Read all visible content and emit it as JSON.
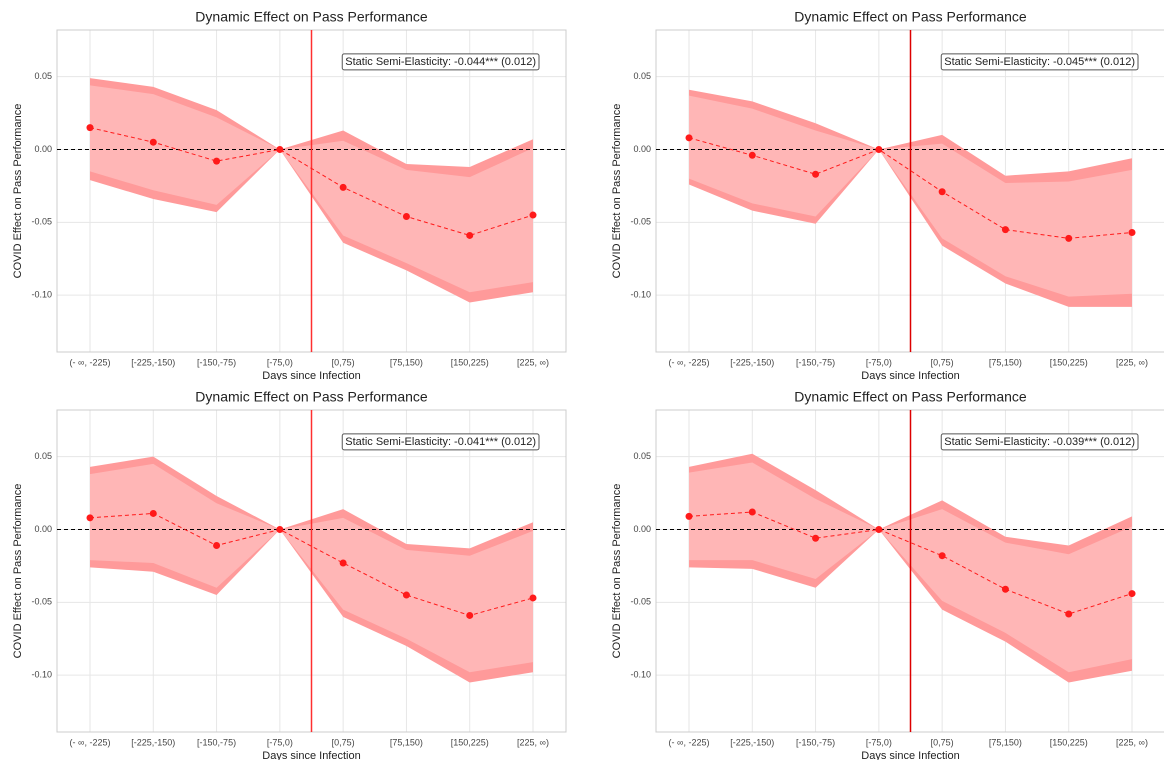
{
  "chart_data": [
    {
      "type": "line",
      "title": "Dynamic Effect on Pass Performance",
      "xlabel": "Days since Infection",
      "ylabel": "COVID Effect on Pass Performance",
      "annotation": "Static Semi-Elasticity: -0.044*** (0.012)",
      "categories": [
        "(- ∞, -225)",
        "[-225,-150)",
        "[-150,-75)",
        "[-75,0)",
        "[0,75)",
        "[75,150)",
        "[150,225)",
        "[225, ∞)"
      ],
      "series": [
        {
          "color": "#ff1a1a",
          "values": [
            0.015,
            0.005,
            -0.008,
            0,
            -0.026,
            -0.046,
            -0.059,
            -0.045
          ],
          "upper_95": [
            0.049,
            0.043,
            0.027,
            0,
            0.013,
            -0.01,
            -0.012,
            0.007
          ],
          "lower_95": [
            -0.021,
            -0.034,
            -0.043,
            0,
            -0.064,
            -0.083,
            -0.105,
            -0.098
          ],
          "upper_90": [
            0.044,
            0.038,
            0.022,
            0,
            0.006,
            -0.014,
            -0.019,
            0.001
          ],
          "lower_90": [
            -0.015,
            -0.028,
            -0.038,
            0,
            -0.059,
            -0.078,
            -0.098,
            -0.091
          ]
        }
      ],
      "band_colors": [
        "#ff9a9a",
        "#ffb6b6"
      ],
      "vline_color": "#ff3030",
      "ylim": [
        -0.139,
        0.082
      ],
      "yticks": [
        0.05,
        {
          "value": 0,
          "label": "0.00"
        },
        -0.05,
        {
          "value": -0.1,
          "label": "-0.10"
        }
      ],
      "grid": true
    },
    {
      "type": "line",
      "title": "Dynamic Effect on Pass Performance",
      "xlabel": "Days since Infection",
      "ylabel": "COVID Effect on Pass Performance",
      "annotation": "Static Semi-Elasticity: -0.045*** (0.012)",
      "categories": [
        "(- ∞, -225)",
        "[-225,-150)",
        "[-150,-75)",
        "[-75,0)",
        "[0,75)",
        "[75,150)",
        "[150,225)",
        "[225, ∞)"
      ],
      "series": [
        {
          "color": "#ff1a1a",
          "values": [
            0.008,
            -0.004,
            -0.017,
            0,
            -0.029,
            -0.055,
            -0.061,
            -0.057
          ],
          "upper_95": [
            0.041,
            0.033,
            0.018,
            0,
            0.01,
            -0.018,
            -0.015,
            -0.006
          ],
          "lower_95": [
            -0.024,
            -0.042,
            -0.051,
            0,
            -0.066,
            -0.092,
            -0.108,
            -0.108
          ],
          "upper_90": [
            0.037,
            0.028,
            0.013,
            0,
            0.004,
            -0.023,
            -0.022,
            -0.014
          ],
          "lower_90": [
            -0.02,
            -0.037,
            -0.046,
            0,
            -0.061,
            -0.087,
            -0.101,
            -0.099
          ]
        }
      ],
      "band_colors": [
        "#ff9a9a",
        "#ffb6b6"
      ],
      "vline_color": "#dd0000",
      "ylim": [
        -0.139,
        0.082
      ],
      "yticks": [
        0.05,
        {
          "value": 0,
          "label": "0.00"
        },
        -0.05,
        {
          "value": -0.1,
          "label": "-0.10"
        }
      ],
      "grid": true
    },
    {
      "type": "line",
      "title": "Dynamic Effect on Pass Performance",
      "xlabel": "Days since Infection",
      "ylabel": "COVID Effect on Pass Performance",
      "annotation": "Static Semi-Elasticity: -0.041*** (0.012)",
      "categories": [
        "(- ∞, -225)",
        "[-225,-150)",
        "[-150,-75)",
        "[-75,0)",
        "[0,75)",
        "[75,150)",
        "[150,225)",
        "[225, ∞)"
      ],
      "series": [
        {
          "color": "#ff1a1a",
          "values": [
            0.008,
            0.011,
            -0.011,
            0,
            -0.023,
            -0.045,
            -0.059,
            -0.047
          ],
          "upper_95": [
            0.043,
            0.05,
            0.023,
            0,
            0.014,
            -0.01,
            -0.013,
            0.005
          ],
          "lower_95": [
            -0.026,
            -0.029,
            -0.045,
            0,
            -0.06,
            -0.08,
            -0.105,
            -0.098
          ],
          "upper_90": [
            0.038,
            0.045,
            0.018,
            0,
            0.008,
            -0.014,
            -0.018,
            -0.001
          ],
          "lower_90": [
            -0.021,
            -0.023,
            -0.04,
            0,
            -0.055,
            -0.075,
            -0.098,
            -0.091
          ]
        }
      ],
      "band_colors": [
        "#ff9a9a",
        "#ffb6b6"
      ],
      "vline_color": "#ff3030",
      "ylim": [
        -0.139,
        0.082
      ],
      "yticks": [
        0.05,
        {
          "value": 0,
          "label": "0.00"
        },
        -0.05,
        {
          "value": -0.1,
          "label": "-0.10"
        }
      ],
      "grid": true
    },
    {
      "type": "line",
      "title": "Dynamic Effect on Pass Performance",
      "xlabel": "Days since Infection",
      "ylabel": "COVID Effect on Pass Performance",
      "annotation": "Static Semi-Elasticity: -0.039*** (0.012)",
      "categories": [
        "(- ∞, -225)",
        "[-225,-150)",
        "[-150,-75)",
        "[-75,0)",
        "[0,75)",
        "[75,150)",
        "[150,225)",
        "[225, ∞)"
      ],
      "series": [
        {
          "color": "#ff1a1a",
          "values": [
            0.009,
            0.012,
            -0.006,
            0,
            -0.018,
            -0.041,
            -0.058,
            -0.044
          ],
          "upper_95": [
            0.043,
            0.052,
            0.027,
            0,
            0.02,
            -0.005,
            -0.011,
            0.009
          ],
          "lower_95": [
            -0.026,
            -0.027,
            -0.04,
            0,
            -0.055,
            -0.077,
            -0.105,
            -0.097
          ],
          "upper_90": [
            0.039,
            0.046,
            0.021,
            0,
            0.014,
            -0.009,
            -0.017,
            0.002
          ],
          "lower_90": [
            -0.021,
            -0.021,
            -0.034,
            0,
            -0.049,
            -0.071,
            -0.098,
            -0.089
          ]
        }
      ],
      "band_colors": [
        "#ff9a9a",
        "#ffb6b6"
      ],
      "vline_color": "#dd0000",
      "ylim": [
        -0.139,
        0.082
      ],
      "yticks": [
        0.05,
        {
          "value": 0,
          "label": "0.00"
        },
        -0.05,
        {
          "value": -0.1,
          "label": "-0.10"
        }
      ],
      "grid": true
    }
  ]
}
